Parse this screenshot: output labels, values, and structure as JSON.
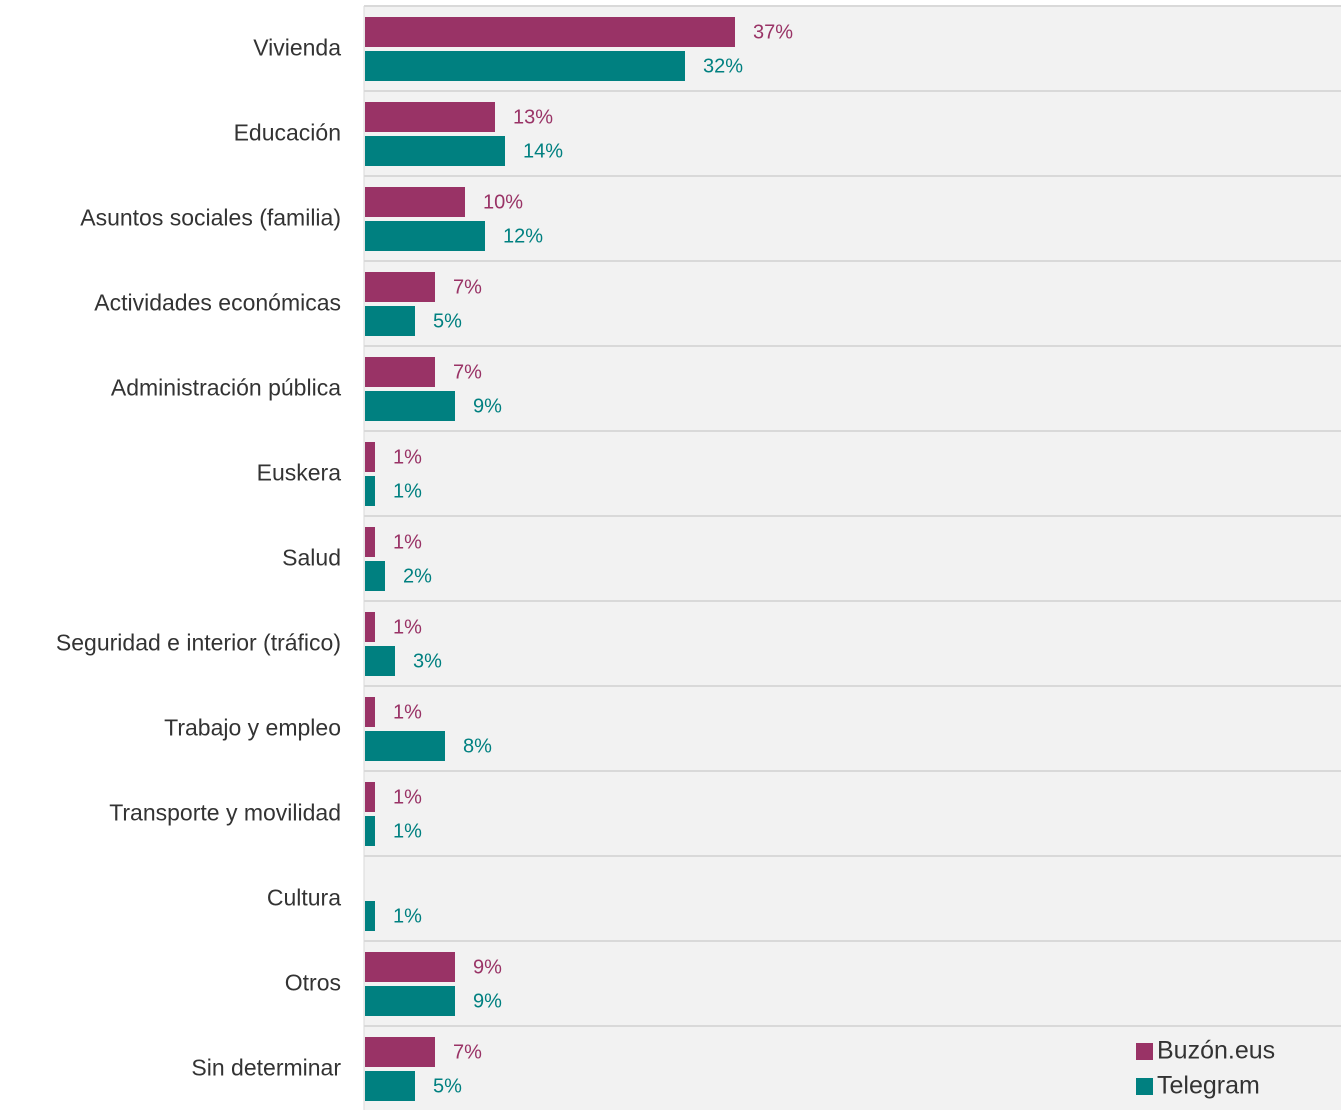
{
  "chart_data": {
    "type": "bar",
    "orientation": "horizontal",
    "categories": [
      "Vivienda",
      "Educación",
      "Asuntos sociales (familia)",
      "Actividades económicas",
      "Administración pública",
      "Euskera",
      "Salud",
      "Seguridad e interior (tráfico)",
      "Trabajo y empleo",
      "Transporte y movilidad",
      "Cultura",
      "Otros",
      "Sin determinar"
    ],
    "series": [
      {
        "name": "Buzón.eus",
        "color": "#993366",
        "values": [
          37,
          13,
          10,
          7,
          7,
          1,
          1,
          1,
          1,
          1,
          null,
          9,
          7
        ],
        "labels": [
          "37%",
          "13%",
          "10%",
          "7%",
          "7%",
          "1%",
          "1%",
          "1%",
          "1%",
          "1%",
          "",
          "9%",
          "7%"
        ]
      },
      {
        "name": "Telegram",
        "color": "#008080",
        "values": [
          32,
          14,
          12,
          5,
          9,
          1,
          2,
          3,
          8,
          1,
          1,
          9,
          5
        ],
        "labels": [
          "32%",
          "14%",
          "12%",
          "5%",
          "9%",
          "1%",
          "2%",
          "3%",
          "8%",
          "1%",
          "1%",
          "9%",
          "5%"
        ]
      }
    ],
    "title": "",
    "xlabel": "",
    "ylabel": "",
    "value_format": "percent",
    "grid": true,
    "legend": "bottom-right",
    "plot_background": "#f2f2f2",
    "gridline_color": "#d9d9d9"
  }
}
